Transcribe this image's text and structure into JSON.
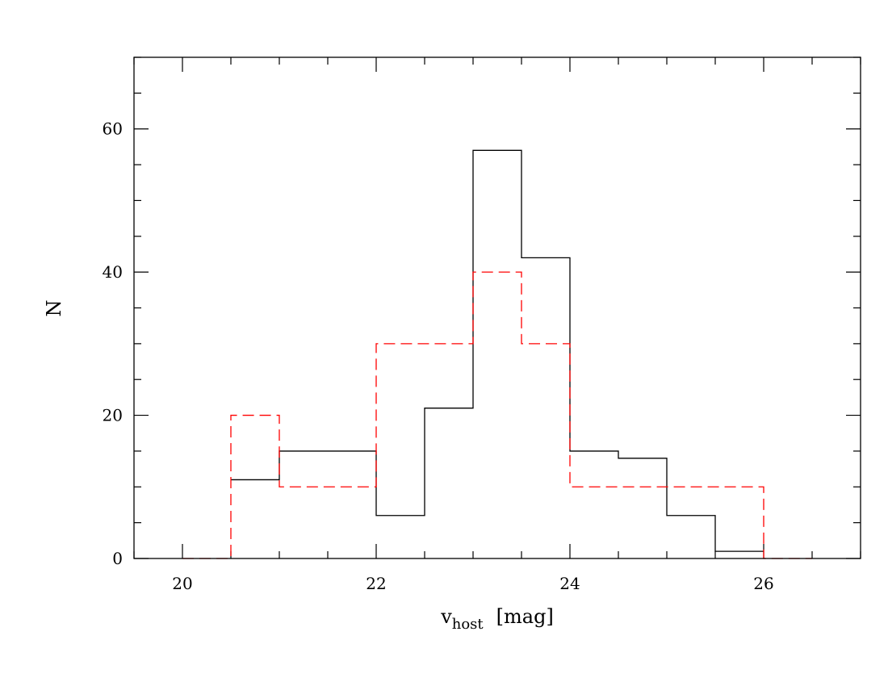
{
  "chart_data": {
    "type": "line",
    "title": "",
    "xlabel": {
      "main": "v",
      "subscript": "host",
      "unit": "[mag]"
    },
    "ylabel": "N",
    "xlim": [
      19.5,
      27.0
    ],
    "ylim": [
      0,
      70
    ],
    "xticks_major": [
      20,
      22,
      24,
      26
    ],
    "xticks_minor_step": 0.5,
    "yticks_major": [
      0,
      20,
      40,
      60
    ],
    "yticks_minor_step": 5,
    "grid": false,
    "legend": "none",
    "style": "step histogram",
    "bin_width": 0.5,
    "series": [
      {
        "line_style": "solid",
        "color": "#000000",
        "bin_edges": [
          20.5,
          21.0,
          21.5,
          22.0,
          22.5,
          23.0,
          23.5,
          24.0,
          24.5,
          25.0,
          25.5,
          26.0
        ],
        "values": [
          11,
          15,
          15,
          6,
          21,
          57,
          42,
          15,
          14,
          6,
          1
        ]
      },
      {
        "line_style": "dashed",
        "color": "#ff0000",
        "bin_edges": [
          20.0,
          20.5,
          21.0,
          21.5,
          22.0,
          22.5,
          23.0,
          23.5,
          24.0,
          24.5,
          25.0,
          25.5,
          26.0,
          26.5
        ],
        "values": [
          0,
          20,
          10,
          10,
          30,
          30,
          40,
          30,
          10,
          10,
          10,
          10,
          0
        ]
      }
    ]
  }
}
